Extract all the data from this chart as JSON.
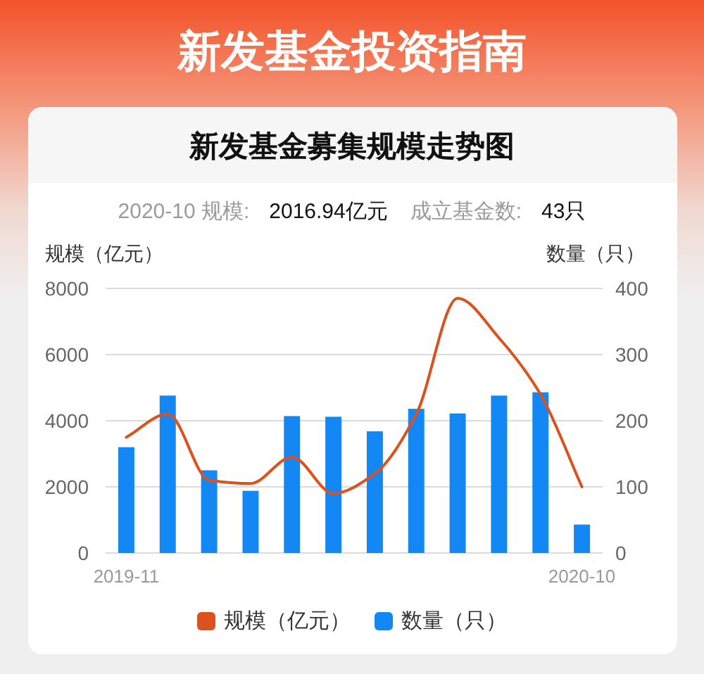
{
  "chart_data": {
    "type": "bar",
    "title": "新发基金投资指南",
    "subtitle": "新发基金募集规模走势图",
    "annotations": [
      "2020-10 规模:",
      "2016.94亿元",
      "成立基金数:",
      "43只"
    ],
    "categories": [
      "2019-11",
      null,
      null,
      null,
      null,
      null,
      null,
      null,
      null,
      null,
      null,
      "2020-10"
    ],
    "ylabel": "规模（亿元）",
    "y2label": "数量（只）",
    "series": [
      {
        "name": "规模（亿元）",
        "type": "line",
        "color": "#dc521f",
        "values": [
          3500,
          4200,
          2200,
          2100,
          2900,
          1800,
          2400,
          4200,
          7700,
          6500,
          4800,
          2000
        ]
      },
      {
        "name": "数量（只）",
        "axis": "y2",
        "color": "#1388f5",
        "values": [
          160,
          238,
          125,
          94,
          207,
          206,
          184,
          218,
          211,
          238,
          243,
          43
        ]
      }
    ],
    "ylim": [
      0,
      8000
    ],
    "yticks": [
      0,
      2000,
      4000,
      6000,
      8000
    ],
    "y2lim": [
      0,
      400
    ],
    "y2ticks": [
      0,
      100,
      200,
      300,
      400
    ],
    "grid": "y",
    "legend": "bottom",
    "marker": "none"
  }
}
